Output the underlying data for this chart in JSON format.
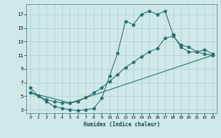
{
  "title": "",
  "xlabel": "Humidex (Indice chaleur)",
  "xlim": [
    -0.5,
    23.5
  ],
  "ylim": [
    2.5,
    18.5
  ],
  "yticks": [
    3,
    5,
    7,
    9,
    11,
    13,
    15,
    17
  ],
  "xticks": [
    0,
    1,
    2,
    3,
    4,
    5,
    6,
    7,
    8,
    9,
    10,
    11,
    12,
    13,
    14,
    15,
    16,
    17,
    18,
    19,
    20,
    21,
    22,
    23
  ],
  "bg_color": "#cfe8e8",
  "grid_color": "#b0d0d0",
  "line_color": "#2a7070",
  "line1_x": [
    0,
    1,
    2,
    3,
    4,
    5,
    6,
    7,
    8,
    9,
    10,
    11,
    12,
    13,
    14,
    15,
    16,
    17,
    18,
    19,
    20,
    21,
    22,
    23
  ],
  "line1_y": [
    6.2,
    5.0,
    4.2,
    3.5,
    3.2,
    3.0,
    2.9,
    3.0,
    3.2,
    4.7,
    8.0,
    11.3,
    16.0,
    15.5,
    17.0,
    17.5,
    17.0,
    17.5,
    14.0,
    12.2,
    11.5,
    11.5,
    11.8,
    11.2
  ],
  "line2_x": [
    0,
    1,
    2,
    3,
    4,
    5,
    6,
    7,
    8,
    9,
    10,
    11,
    12,
    13,
    14,
    15,
    16,
    17,
    18,
    19,
    20,
    21,
    22,
    23
  ],
  "line2_y": [
    5.5,
    5.0,
    4.5,
    4.2,
    4.0,
    4.0,
    4.2,
    4.8,
    5.5,
    6.2,
    7.2,
    8.2,
    9.2,
    10.0,
    10.8,
    11.5,
    12.0,
    13.5,
    13.8,
    12.5,
    12.2,
    11.5,
    11.2,
    11.0
  ],
  "line3_x": [
    0,
    5,
    23
  ],
  "line3_y": [
    5.5,
    4.0,
    11.0
  ],
  "marker": "*",
  "markersize": 3.5,
  "linewidth": 0.8,
  "xlabel_fontsize": 5.5,
  "tick_fontsize_x": 4.2,
  "tick_fontsize_y": 5.0
}
